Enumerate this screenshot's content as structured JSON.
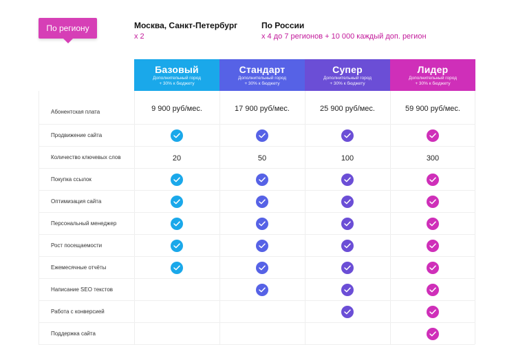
{
  "region": {
    "button_label": "По региону",
    "moscow": {
      "title": "Москва, Санкт-Петербург",
      "note": "x 2"
    },
    "russia": {
      "title": "По России",
      "note": "x 4 до 7 регионов + 10 000 каждый доп. регион"
    }
  },
  "colors": {
    "basic": "#1aa8ea",
    "standard": "#5662e6",
    "super": "#6b4ed6",
    "leader": "#cf2fb9",
    "accent_button": "#d63fb6"
  },
  "plans": [
    {
      "key": "basic",
      "name": "Базовый",
      "note_line1": "Дополнительный город",
      "note_line2": "+ 30% к бюджету"
    },
    {
      "key": "standard",
      "name": "Стандарт",
      "note_line1": "Дополнительный город",
      "note_line2": "+ 30% к бюджету"
    },
    {
      "key": "super",
      "name": "Супер",
      "note_line1": "Дополнительный город",
      "note_line2": "+ 30% к бюджету"
    },
    {
      "key": "leader",
      "name": "Лидер",
      "note_line1": "Дополнительный город",
      "note_line2": "+ 30% к бюджету"
    }
  ],
  "features": [
    {
      "label": "Абонентская плата",
      "values": [
        "9 900 руб/мес.",
        "17 900 руб/мес.",
        "25 900 руб/мес.",
        "59 900 руб/мес."
      ]
    },
    {
      "label": "Продвижение сайта",
      "values": [
        true,
        true,
        true,
        true
      ]
    },
    {
      "label": "Количество ключевых слов",
      "values": [
        "20",
        "50",
        "100",
        "300"
      ]
    },
    {
      "label": "Покупка ссылок",
      "values": [
        true,
        true,
        true,
        true
      ]
    },
    {
      "label": "Оптимизация сайта",
      "values": [
        true,
        true,
        true,
        true
      ]
    },
    {
      "label": "Персональный менеджер",
      "values": [
        true,
        true,
        true,
        true
      ]
    },
    {
      "label": "Рост посещаемости",
      "values": [
        true,
        true,
        true,
        true
      ]
    },
    {
      "label": "Ежемесячные отчёты",
      "values": [
        true,
        true,
        true,
        true
      ]
    },
    {
      "label": "Написание SEO текстов",
      "values": [
        false,
        true,
        true,
        true
      ]
    },
    {
      "label": "Работа с конверсией",
      "values": [
        false,
        false,
        true,
        true
      ]
    },
    {
      "label": "Поддержка сайта",
      "values": [
        false,
        false,
        false,
        true
      ]
    }
  ]
}
